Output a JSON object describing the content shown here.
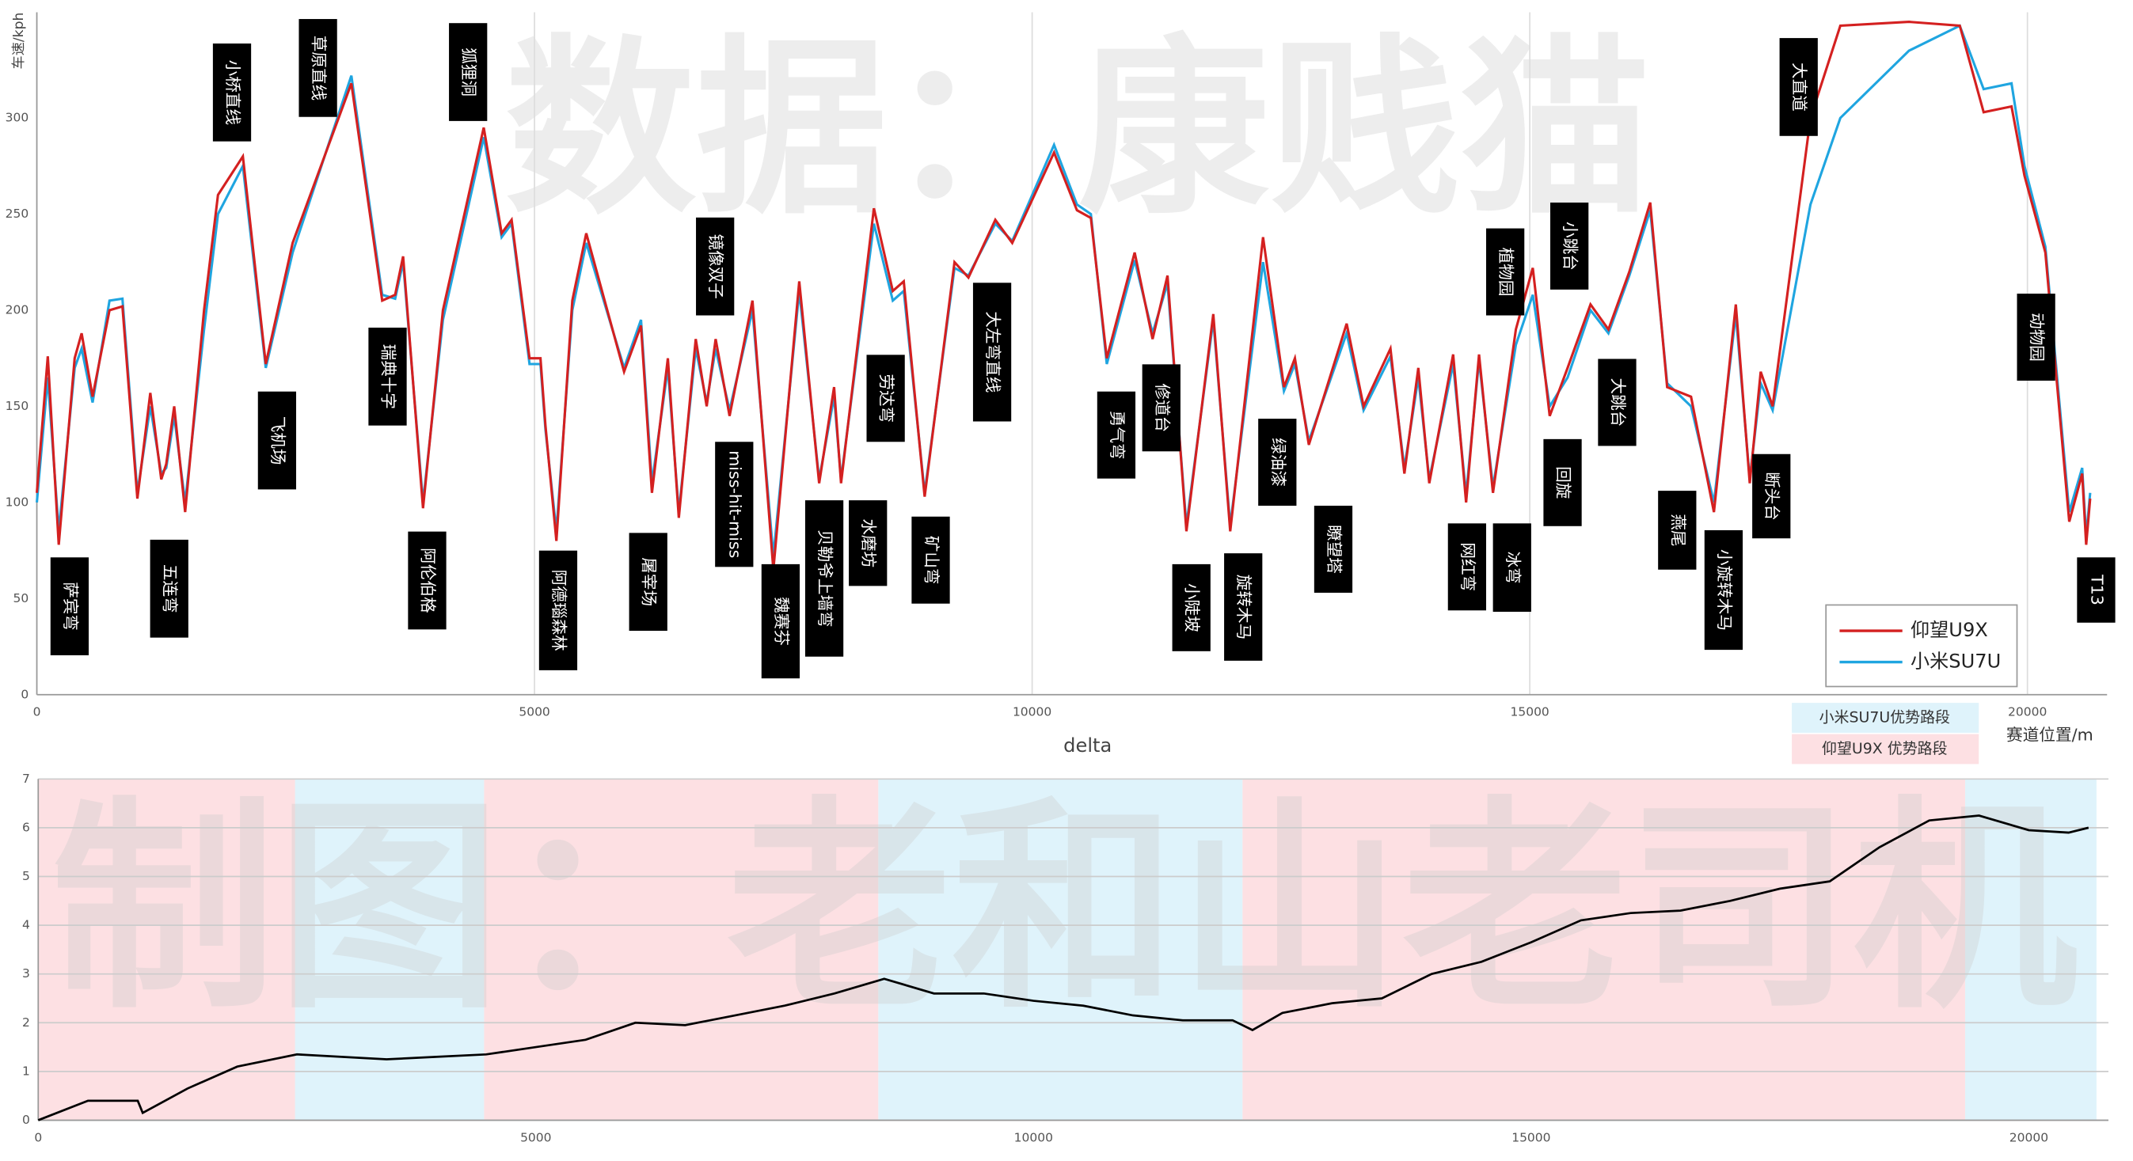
{
  "watermarks": [
    "数据：康贱猫",
    "制图：老和山老司机"
  ],
  "chart_data": [
    {
      "type": "line",
      "ylabel": "车速/kph",
      "xlabel": "赛道位置/m",
      "xlim": [
        0,
        20800
      ],
      "xticks": [
        0,
        5000,
        10000,
        15000,
        20000
      ],
      "ylim": [
        0,
        355
      ],
      "yticks": [
        0,
        50,
        100,
        150,
        200,
        250,
        300
      ],
      "grid": "x",
      "legend": "bottom-right",
      "x": [
        0,
        110,
        220,
        380,
        450,
        560,
        730,
        860,
        1010,
        1140,
        1250,
        1300,
        1380,
        1490,
        1680,
        1820,
        2070,
        2300,
        2570,
        3160,
        3470,
        3600,
        3680,
        3880,
        4080,
        4490,
        4670,
        4770,
        4950,
        5060,
        5110,
        5220,
        5380,
        5520,
        5900,
        6070,
        6180,
        6340,
        6450,
        6620,
        6730,
        6820,
        6960,
        7190,
        7400,
        7660,
        7860,
        8010,
        8080,
        8410,
        8600,
        8710,
        8920,
        9220,
        9360,
        9630,
        9800,
        10220,
        10450,
        10590,
        10750,
        11030,
        11210,
        11360,
        11550,
        11820,
        11990,
        12320,
        12530,
        12640,
        12780,
        13160,
        13330,
        13600,
        13740,
        13880,
        13990,
        14230,
        14360,
        14490,
        14630,
        14860,
        15030,
        15200,
        15380,
        15610,
        15790,
        16000,
        16210,
        16380,
        16620,
        16850,
        17070,
        17210,
        17320,
        17440,
        17820,
        18120,
        18810,
        19320,
        19560,
        19840,
        19970,
        20180,
        20420,
        20550,
        20590,
        20630
      ],
      "series": [
        {
          "name": "小米SU7U",
          "color": "#1fa5e0",
          "values": [
            100,
            165,
            85,
            170,
            180,
            152,
            205,
            206,
            105,
            150,
            115,
            118,
            145,
            100,
            190,
            250,
            275,
            170,
            230,
            322,
            208,
            206,
            225,
            100,
            195,
            290,
            238,
            245,
            172,
            172,
            138,
            85,
            200,
            235,
            170,
            195,
            110,
            170,
            95,
            180,
            152,
            180,
            148,
            200,
            72,
            210,
            112,
            155,
            112,
            245,
            205,
            210,
            105,
            222,
            218,
            245,
            236,
            286,
            255,
            250,
            172,
            226,
            188,
            214,
            88,
            195,
            88,
            225,
            158,
            172,
            132,
            188,
            148,
            176,
            118,
            165,
            112,
            172,
            104,
            174,
            108,
            182,
            208,
            150,
            165,
            200,
            188,
            218,
            252,
            162,
            150,
            100,
            198,
            112,
            162,
            148,
            255,
            300,
            335,
            348,
            315,
            318,
            275,
            233,
            95,
            118,
            82,
            105
          ]
        },
        {
          "name": "仰望U9X",
          "color": "#d42020",
          "values": [
            105,
            176,
            78,
            175,
            188,
            155,
            200,
            202,
            102,
            157,
            112,
            120,
            150,
            95,
            200,
            260,
            280,
            172,
            235,
            318,
            205,
            208,
            228,
            97,
            200,
            295,
            240,
            247,
            175,
            175,
            140,
            80,
            205,
            240,
            168,
            192,
            105,
            175,
            92,
            185,
            150,
            185,
            145,
            205,
            65,
            215,
            110,
            160,
            110,
            253,
            210,
            215,
            103,
            225,
            217,
            247,
            235,
            282,
            252,
            248,
            175,
            230,
            185,
            218,
            85,
            198,
            85,
            238,
            160,
            175,
            130,
            193,
            150,
            180,
            115,
            170,
            110,
            177,
            100,
            177,
            105,
            190,
            222,
            145,
            170,
            203,
            190,
            220,
            256,
            160,
            155,
            95,
            203,
            110,
            168,
            150,
            300,
            348,
            350,
            348,
            303,
            306,
            270,
            230,
            90,
            115,
            78,
            102
          ]
        }
      ],
      "annotations": [
        "萨宾弯",
        "五连弯",
        "小桥直线",
        "飞机场",
        "草原直线",
        "瑞典十字",
        "阿伦伯格",
        "狐狸洞",
        "阿德瑙森林",
        "屠宰场",
        "镜像双子",
        "miss-hit-miss",
        "魏赛芬",
        "贝勒爷上墙弯",
        "水磨坊",
        "劳达弯",
        "矿山弯",
        "大左弯直线",
        "勇气弯",
        "修道台",
        "小陡坡",
        "旋转木马",
        "绿油漆",
        "瞭望塔",
        "网红弯",
        "冰弯",
        "植物园",
        "小跳台",
        "回旋",
        "大跳台",
        "燕尾",
        "小旋转木马",
        "断头台",
        "大直道",
        "动物园",
        "T13"
      ]
    },
    {
      "type": "line",
      "title": "delta",
      "xlim": [
        0,
        20800
      ],
      "xticks": [
        0,
        5000,
        10000,
        15000,
        20000
      ],
      "ylim": [
        0,
        7
      ],
      "yticks": [
        0,
        1,
        2,
        3,
        4,
        5,
        6,
        7
      ],
      "grid": "y",
      "regions": [
        {
          "name": "小米SU7U优势路段",
          "color": "#dff3fb",
          "spans": [
            [
              2580,
              4480
            ],
            [
              8440,
              12100
            ],
            [
              19360,
              20680
            ]
          ]
        },
        {
          "name": "仰望U9X 优势路段",
          "color": "#fde0e3",
          "spans": [
            [
              0,
              2580
            ],
            [
              4480,
              8440
            ],
            [
              12100,
              19360
            ]
          ]
        }
      ],
      "x": [
        0,
        500,
        1000,
        1050,
        1500,
        2000,
        2600,
        3500,
        4000,
        4500,
        5000,
        5500,
        6000,
        6500,
        7000,
        7500,
        8000,
        8500,
        9000,
        9500,
        10000,
        10500,
        11000,
        11500,
        12000,
        12200,
        12500,
        13000,
        13500,
        14000,
        14500,
        15000,
        15500,
        16000,
        16500,
        17000,
        17500,
        18000,
        18500,
        19000,
        19500,
        20000,
        20400,
        20600
      ],
      "series": [
        {
          "color": "#000000",
          "values": [
            0,
            0.4,
            0.4,
            0.15,
            0.65,
            1.1,
            1.35,
            1.25,
            1.3,
            1.35,
            1.5,
            1.65,
            2.0,
            1.95,
            2.15,
            2.35,
            2.6,
            2.9,
            2.6,
            2.6,
            2.45,
            2.35,
            2.15,
            2.05,
            2.05,
            1.85,
            2.2,
            2.4,
            2.5,
            3.0,
            3.25,
            3.65,
            4.1,
            4.25,
            4.3,
            4.5,
            4.75,
            4.9,
            5.6,
            6.15,
            6.25,
            5.95,
            5.9,
            6.0
          ]
        }
      ]
    }
  ]
}
